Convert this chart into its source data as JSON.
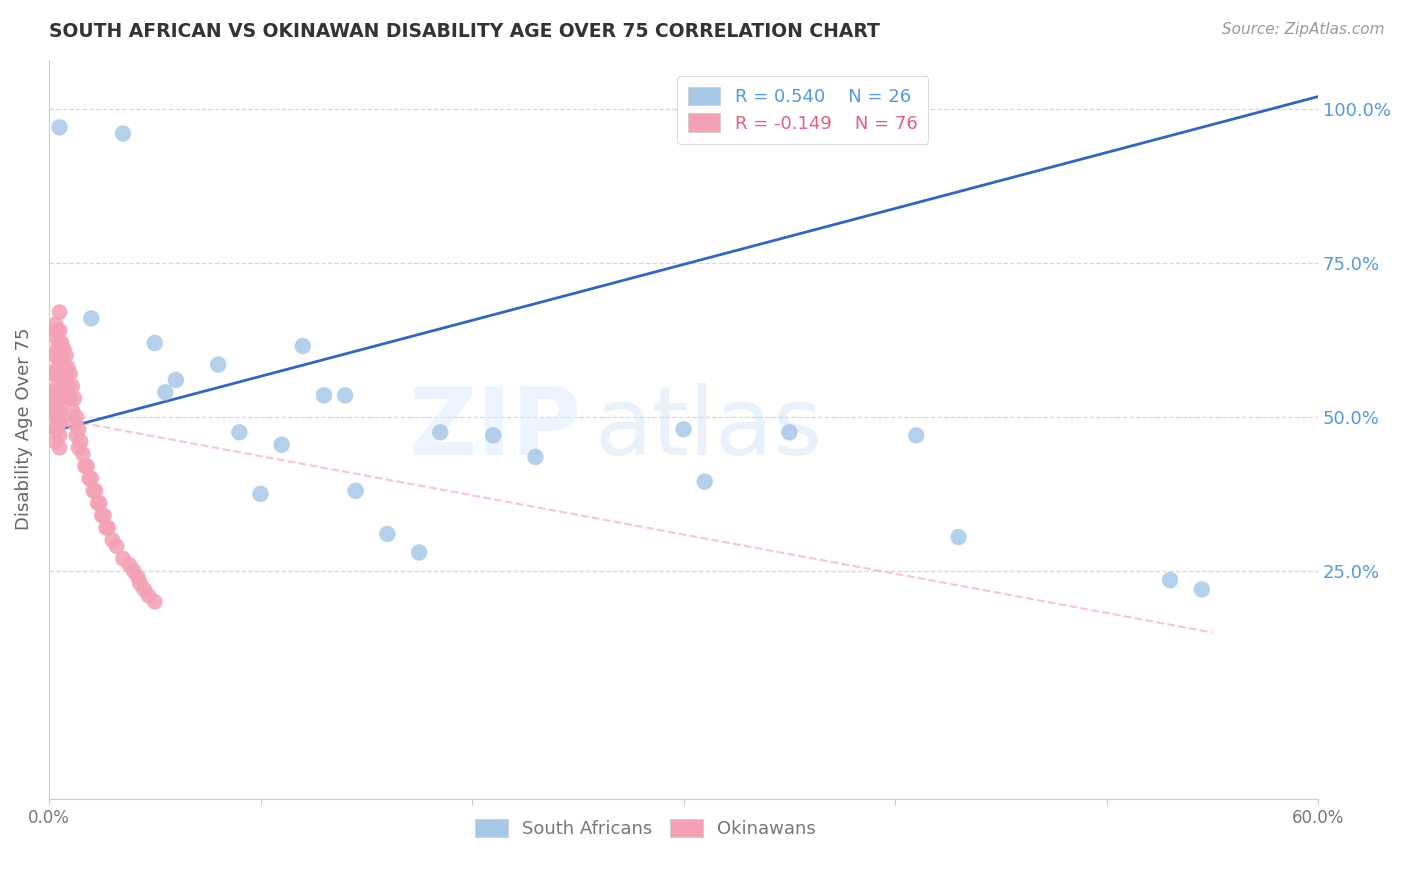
{
  "title": "SOUTH AFRICAN VS OKINAWAN DISABILITY AGE OVER 75 CORRELATION CHART",
  "source": "Source: ZipAtlas.com",
  "ylabel": "Disability Age Over 75",
  "watermark_zip": "ZIP",
  "watermark_atlas": "atlas",
  "y_ticks": [
    0.25,
    0.5,
    0.75,
    1.0
  ],
  "y_tick_labels": [
    "25.0%",
    "50.0%",
    "75.0%",
    "100.0%"
  ],
  "xlim": [
    0.0,
    0.6
  ],
  "ylim": [
    -0.12,
    1.08
  ],
  "blue_R": 0.54,
  "blue_N": 26,
  "pink_R": -0.149,
  "pink_N": 76,
  "blue_color": "#a8c8e8",
  "blue_line_color": "#3366bb",
  "pink_color": "#f4a0b5",
  "pink_line_color": "#f0a0b8",
  "grid_color": "#d0d8e8",
  "background_color": "#ffffff",
  "blue_scatter_x": [
    0.005,
    0.035,
    0.02,
    0.05,
    0.06,
    0.08,
    0.09,
    0.1,
    0.11,
    0.13,
    0.14,
    0.145,
    0.16,
    0.175,
    0.185,
    0.21,
    0.23,
    0.3,
    0.31,
    0.35,
    0.41,
    0.43,
    0.53,
    0.545,
    0.12,
    0.055
  ],
  "blue_scatter_y": [
    0.97,
    0.96,
    0.66,
    0.62,
    0.56,
    0.585,
    0.475,
    0.375,
    0.455,
    0.535,
    0.535,
    0.38,
    0.31,
    0.28,
    0.475,
    0.47,
    0.435,
    0.48,
    0.395,
    0.475,
    0.47,
    0.305,
    0.235,
    0.22,
    0.615,
    0.54
  ],
  "pink_scatter_x": [
    0.002,
    0.002,
    0.002,
    0.003,
    0.003,
    0.003,
    0.003,
    0.003,
    0.003,
    0.003,
    0.003,
    0.003,
    0.004,
    0.004,
    0.004,
    0.004,
    0.004,
    0.004,
    0.004,
    0.005,
    0.005,
    0.005,
    0.005,
    0.005,
    0.005,
    0.005,
    0.005,
    0.005,
    0.005,
    0.006,
    0.006,
    0.006,
    0.006,
    0.006,
    0.007,
    0.007,
    0.007,
    0.008,
    0.008,
    0.008,
    0.009,
    0.009,
    0.01,
    0.01,
    0.011,
    0.011,
    0.012,
    0.012,
    0.013,
    0.013,
    0.014,
    0.014,
    0.015,
    0.016,
    0.017,
    0.018,
    0.019,
    0.02,
    0.021,
    0.022,
    0.023,
    0.024,
    0.025,
    0.026,
    0.027,
    0.028,
    0.03,
    0.032,
    0.035,
    0.038,
    0.04,
    0.042,
    0.043,
    0.045,
    0.047,
    0.05
  ],
  "pink_scatter_y": [
    0.57,
    0.54,
    0.51,
    0.65,
    0.63,
    0.6,
    0.57,
    0.54,
    0.52,
    0.5,
    0.48,
    0.46,
    0.64,
    0.61,
    0.58,
    0.55,
    0.52,
    0.5,
    0.48,
    0.67,
    0.64,
    0.62,
    0.59,
    0.57,
    0.54,
    0.51,
    0.49,
    0.47,
    0.45,
    0.62,
    0.59,
    0.56,
    0.53,
    0.5,
    0.61,
    0.58,
    0.55,
    0.6,
    0.57,
    0.54,
    0.58,
    0.55,
    0.57,
    0.53,
    0.55,
    0.51,
    0.53,
    0.49,
    0.5,
    0.47,
    0.48,
    0.45,
    0.46,
    0.44,
    0.42,
    0.42,
    0.4,
    0.4,
    0.38,
    0.38,
    0.36,
    0.36,
    0.34,
    0.34,
    0.32,
    0.32,
    0.3,
    0.29,
    0.27,
    0.26,
    0.25,
    0.24,
    0.23,
    0.22,
    0.21,
    0.2
  ],
  "blue_trendline_x": [
    0.0,
    0.6
  ],
  "blue_trendline_y": [
    0.475,
    1.02
  ],
  "pink_trendline_x": [
    0.0,
    0.55
  ],
  "pink_trendline_y": [
    0.5,
    0.15
  ],
  "legend_blue_label_r": "R = 0.540",
  "legend_blue_label_n": "N = 26",
  "legend_pink_label_r": "R = -0.149",
  "legend_pink_label_n": "N = 76",
  "bottom_legend_blue": "South Africans",
  "bottom_legend_pink": "Okinawans"
}
